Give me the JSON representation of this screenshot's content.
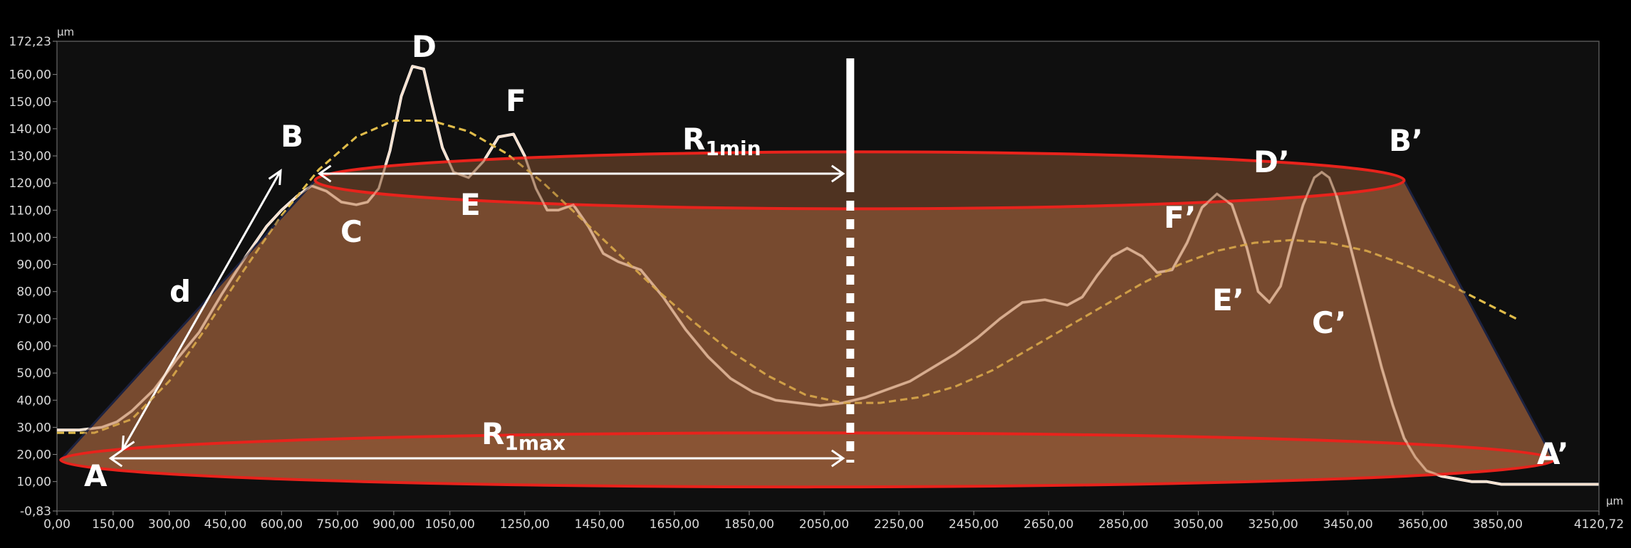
{
  "chart_data": {
    "type": "line",
    "x_unit": "µm",
    "y_unit": "µm",
    "xlim": [
      0,
      4120.72
    ],
    "ylim": [
      -0.83,
      172.23
    ],
    "x_ticks": [
      "0,00",
      "150,00",
      "300,00",
      "450,00",
      "600,00",
      "750,00",
      "900,00",
      "1050,00",
      "1250,00",
      "1450,00",
      "1650,00",
      "1850,00",
      "2050,00",
      "2250,00",
      "2450,00",
      "2650,00",
      "2850,00",
      "3050,00",
      "3250,00",
      "3450,00",
      "3650,00",
      "3850,00",
      "4120,72"
    ],
    "y_ticks": [
      "-0,83",
      "10,00",
      "20,00",
      "30,00",
      "40,00",
      "50,00",
      "60,00",
      "70,00",
      "80,00",
      "90,00",
      "100,00",
      "110,00",
      "120,00",
      "130,00",
      "140,00",
      "150,00",
      "160,00",
      "172,23"
    ],
    "series": [
      {
        "name": "",
        "color": "#ffffff",
        "x": [
          0,
          60,
          120,
          160,
          200,
          260,
          320,
          380,
          440,
          500,
          560,
          600,
          640,
          680,
          720,
          760,
          800,
          830,
          860,
          890,
          920,
          950,
          980,
          1000,
          1030,
          1060,
          1100,
          1140,
          1180,
          1220,
          1250,
          1280,
          1310,
          1340,
          1380,
          1420,
          1460,
          1500,
          1560,
          1620,
          1680,
          1740,
          1800,
          1860,
          1920,
          1980,
          2040,
          2100,
          2160,
          2220,
          2280,
          2340,
          2400,
          2460,
          2520,
          2580,
          2640,
          2700,
          2740,
          2780,
          2820,
          2860,
          2900,
          2940,
          2980,
          3020,
          3060,
          3100,
          3140,
          3180,
          3210,
          3240,
          3270,
          3300,
          3330,
          3360,
          3380,
          3400,
          3420,
          3450,
          3480,
          3510,
          3540,
          3570,
          3600,
          3630,
          3660,
          3700,
          3740,
          3780,
          3820,
          3860,
          3900,
          3940,
          3980,
          4020,
          4060,
          4120
        ],
        "y": [
          29,
          29,
          30,
          32,
          36,
          44,
          55,
          65,
          79,
          92,
          104,
          110,
          115,
          119,
          117,
          113,
          112,
          113,
          118,
          132,
          152,
          163,
          162,
          150,
          133,
          124,
          122,
          128,
          137,
          138,
          130,
          118,
          110,
          110,
          112,
          104,
          94,
          91,
          88,
          78,
          66,
          56,
          48,
          43,
          40,
          39,
          38,
          39,
          41,
          44,
          47,
          52,
          57,
          63,
          70,
          76,
          77,
          75,
          78,
          86,
          93,
          96,
          93,
          87,
          88,
          98,
          111,
          116,
          112,
          96,
          80,
          76,
          82,
          98,
          112,
          122,
          124,
          122,
          115,
          100,
          84,
          68,
          52,
          38,
          26,
          19,
          14,
          12,
          11,
          10,
          10,
          9,
          9,
          9,
          9,
          9,
          9,
          9
        ]
      },
      {
        "name": "",
        "color": "#f2e64b",
        "x": [
          0,
          100,
          200,
          300,
          400,
          500,
          600,
          700,
          800,
          900,
          1000,
          1100,
          1200,
          1300,
          1400,
          1500,
          1600,
          1700,
          1800,
          1900,
          2000,
          2100,
          2200,
          2300,
          2400,
          2500,
          2600,
          2700,
          2800,
          2900,
          3000,
          3100,
          3200,
          3300,
          3400,
          3500,
          3600,
          3700,
          3800,
          3900
        ],
        "y": [
          28,
          28,
          33,
          47,
          67,
          88,
          108,
          125,
          137,
          143,
          143,
          139,
          131,
          120,
          107,
          94,
          81,
          69,
          58,
          49,
          42,
          39,
          39,
          41,
          45,
          51,
          59,
          67,
          75,
          83,
          90,
          95,
          98,
          99,
          98,
          95,
          90,
          84,
          77,
          70
        ]
      }
    ],
    "annotations": {
      "points": [
        "A",
        "B",
        "C",
        "D",
        "E",
        "F",
        "A’",
        "B’",
        "C’",
        "D’",
        "E’",
        "F’"
      ],
      "d_label": "d",
      "r_min": {
        "main": "R",
        "sub": "1min"
      },
      "r_max": {
        "main": "R",
        "sub": "1max"
      }
    },
    "colors": {
      "background": "#000000",
      "plot_fill": "#0f0f0f",
      "profile": "#ffffff",
      "fit": "#f2e64b",
      "frustum": "#a0613c",
      "ellipse_stroke": "#e8231c",
      "top_ellipse_fill": "#5a3a25"
    },
    "grid": false
  }
}
